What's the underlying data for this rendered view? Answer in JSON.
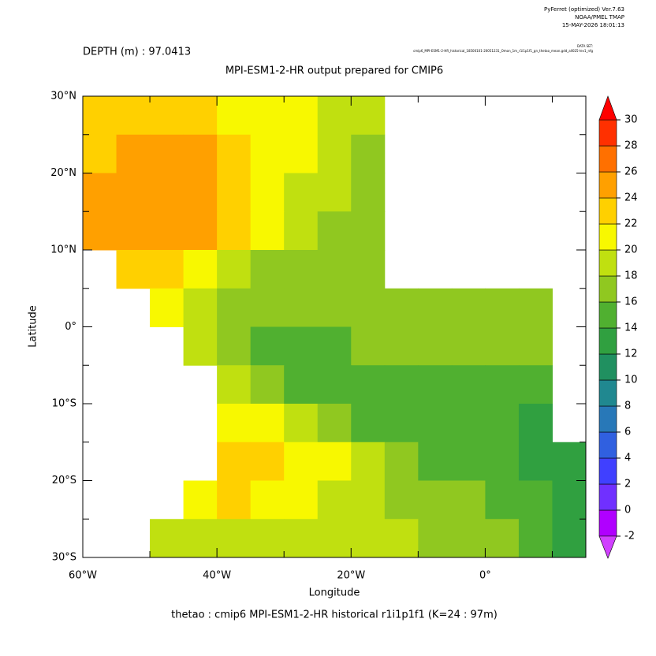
{
  "header": {
    "software": "PyFerret (optimized) Ver.7.63",
    "org": "NOAA/PMEL TMAP",
    "date": "15-MAY-2026 18:01:13",
    "dataset_label": "DATA SET:",
    "dataset": "cmip6_MPI-ESM1-2-HR_historical_18500101-20051231_Omon_1m_r1i1p1f1_gn_thetao_mean.gdd_all025-lev1_nfg"
  },
  "chart_data": {
    "type": "heatmap",
    "depth_label": "DEPTH (m) : 97.0413",
    "title": "MPI-ESM1-2-HR output prepared for CMIP6",
    "x_label": "Longitude",
    "y_label": "Latitude",
    "footer": "thetao : cmip6 MPI-ESM1-2-HR historical r1i1p1f1   (K=24 : 97m)",
    "xlim": [
      -60,
      15
    ],
    "ylim": [
      -30,
      30
    ],
    "xticks": [
      {
        "value": -60,
        "label": "60°W"
      },
      {
        "value": -40,
        "label": "40°W"
      },
      {
        "value": -20,
        "label": "20°W"
      },
      {
        "value": 0,
        "label": "0°"
      }
    ],
    "xminorticks": [
      -50,
      -30,
      -10,
      10
    ],
    "yticks": [
      {
        "value": 30,
        "label": "30°N"
      },
      {
        "value": 20,
        "label": "20°N"
      },
      {
        "value": 10,
        "label": "10°N"
      },
      {
        "value": 0,
        "label": "0°"
      },
      {
        "value": -10,
        "label": "10°S"
      },
      {
        "value": -20,
        "label": "20°S"
      },
      {
        "value": -30,
        "label": "30°S"
      }
    ],
    "yminorticks": [
      25,
      15,
      5,
      -5,
      -15,
      -25
    ],
    "x": [
      -57.5,
      -52.5,
      -47.5,
      -42.5,
      -37.5,
      -32.5,
      -27.5,
      -22.5,
      -17.5,
      -12.5,
      -7.5,
      -2.5,
      2.5,
      7.5,
      12.5
    ],
    "y": [
      27.5,
      22.5,
      17.5,
      12.5,
      7.5,
      2.5,
      -2.5,
      -7.5,
      -12.5,
      -17.5,
      -22.5,
      -27.5
    ],
    "z": [
      [
        22,
        22,
        22,
        22,
        21,
        21,
        20,
        19,
        18,
        null,
        null,
        null,
        null,
        null,
        null
      ],
      [
        23,
        24,
        24,
        24,
        23,
        21,
        20,
        19,
        17,
        null,
        null,
        null,
        null,
        null,
        null
      ],
      [
        25,
        25,
        24,
        24,
        23,
        21,
        19,
        18,
        16,
        null,
        null,
        null,
        null,
        null,
        null
      ],
      [
        24,
        25,
        25,
        24,
        22,
        20,
        18,
        17,
        16,
        null,
        null,
        null,
        null,
        null,
        null
      ],
      [
        null,
        23,
        22,
        20,
        18,
        17,
        16,
        16,
        17,
        null,
        null,
        null,
        null,
        null,
        null
      ],
      [
        null,
        null,
        20,
        18,
        16,
        16,
        16,
        17,
        17,
        17,
        17,
        17,
        17,
        17,
        null
      ],
      [
        null,
        null,
        null,
        19,
        16,
        15,
        15,
        15,
        16,
        16,
        16,
        16,
        16,
        17,
        null
      ],
      [
        null,
        null,
        null,
        null,
        18,
        16,
        15,
        14,
        14,
        14,
        15,
        15,
        15,
        15,
        null
      ],
      [
        null,
        null,
        null,
        null,
        21,
        20,
        18,
        16,
        15,
        14,
        14,
        14,
        14,
        13,
        null
      ],
      [
        null,
        null,
        null,
        null,
        23,
        22,
        21,
        20,
        18,
        16,
        15,
        14,
        14,
        13,
        13
      ],
      [
        null,
        null,
        null,
        21,
        22,
        21,
        20,
        19,
        18,
        17,
        16,
        16,
        15,
        14,
        13
      ],
      [
        null,
        null,
        19,
        19,
        19,
        19,
        19,
        19,
        18,
        18,
        17,
        17,
        16,
        15,
        13
      ]
    ],
    "colorbar": {
      "levels": [
        -2,
        0,
        2,
        4,
        6,
        8,
        10,
        12,
        14,
        16,
        18,
        20,
        22,
        24,
        26,
        28,
        30
      ],
      "colors": [
        "#b000ff",
        "#7030ff",
        "#4040ff",
        "#3060e0",
        "#2878b8",
        "#208890",
        "#209060",
        "#30a040",
        "#50b030",
        "#90c820",
        "#c0e010",
        "#f8f800",
        "#ffd000",
        "#ffa000",
        "#ff7000",
        "#ff3000"
      ],
      "under_color": "#d040ff",
      "over_color": "#ff0000"
    }
  }
}
